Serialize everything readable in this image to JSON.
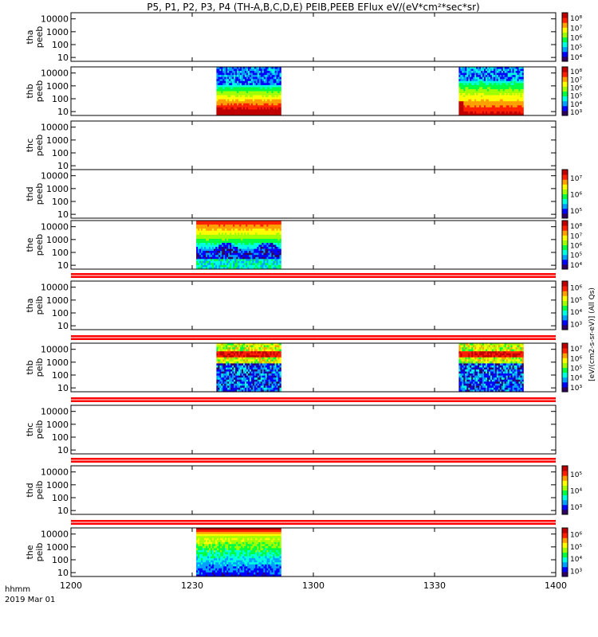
{
  "title": "P5, P1, P2, P3, P4 (TH-A,B,C,D,E) PEIB,PEEB EFlux eV/(eV*cm²*sec*sr)",
  "time_label": "hhmm",
  "date_label": "2019 Mar 01",
  "colorbar_unit": "[eV/(cm2-s-sr-eV)] (All Qs)",
  "chart_data": {
    "type": "heatmap",
    "x_axis": {
      "ticks": [
        "1200",
        "1230",
        "1300",
        "1330",
        "1400"
      ],
      "range_minutes": [
        0,
        120
      ]
    },
    "y_scale": "log",
    "y_ticks": [
      "10",
      "100",
      "1000",
      "10000"
    ],
    "y_range": [
      5,
      30000
    ],
    "colormap": [
      "#300060",
      "#0000ff",
      "#00a0ff",
      "#00ffe0",
      "#00ff40",
      "#a0ff00",
      "#ffff00",
      "#ffa000",
      "#ff2000",
      "#c00000"
    ],
    "panels": [
      {
        "label1": "tha",
        "label2": "peeb",
        "separator": false,
        "blocks": [],
        "colorbar": [
          "10⁴",
          "10⁵",
          "10⁶",
          "10⁷",
          "10⁸"
        ]
      },
      {
        "label1": "thb",
        "label2": "peeb",
        "separator": false,
        "blocks": [
          {
            "t0": 36,
            "t1": 52,
            "style": "electron_hot"
          },
          {
            "t0": 96,
            "t1": 112,
            "style": "electron_warm"
          }
        ],
        "colorbar": [
          "10³",
          "10⁴",
          "10⁵",
          "10⁶",
          "10⁷",
          "10⁸"
        ]
      },
      {
        "label1": "thc",
        "label2": "peeb",
        "separator": false,
        "blocks": [],
        "colorbar": []
      },
      {
        "label1": "thd",
        "label2": "peeb",
        "separator": false,
        "blocks": [],
        "colorbar": [
          "10⁵",
          "10⁶",
          "10⁷"
        ]
      },
      {
        "label1": "the",
        "label2": "peeb",
        "separator": false,
        "blocks": [
          {
            "t0": 31,
            "t1": 52,
            "style": "electron_band"
          }
        ],
        "colorbar": [
          "10⁴",
          "10⁵",
          "10⁶",
          "10⁷",
          "10⁸"
        ]
      },
      {
        "label1": "tha",
        "label2": "peib",
        "separator": true,
        "blocks": [],
        "colorbar": [
          "10³",
          "10⁴",
          "10⁵",
          "10⁶"
        ]
      },
      {
        "label1": "thb",
        "label2": "peib",
        "separator": true,
        "blocks": [
          {
            "t0": 36,
            "t1": 52,
            "style": "ion"
          },
          {
            "t0": 96,
            "t1": 112,
            "style": "ion"
          }
        ],
        "colorbar": [
          "10³",
          "10⁴",
          "10⁵",
          "10⁶",
          "10⁷"
        ]
      },
      {
        "label1": "thc",
        "label2": "peib",
        "separator": true,
        "blocks": [],
        "colorbar": []
      },
      {
        "label1": "thd",
        "label2": "peib",
        "separator": true,
        "blocks": [],
        "colorbar": [
          "10³",
          "10⁴",
          "10⁵"
        ]
      },
      {
        "label1": "the",
        "label2": "peib",
        "separator": true,
        "blocks": [
          {
            "t0": 31,
            "t1": 52,
            "style": "ion_hot"
          }
        ],
        "colorbar": [
          "10³",
          "10⁴",
          "10⁵",
          "10⁶"
        ]
      }
    ]
  }
}
